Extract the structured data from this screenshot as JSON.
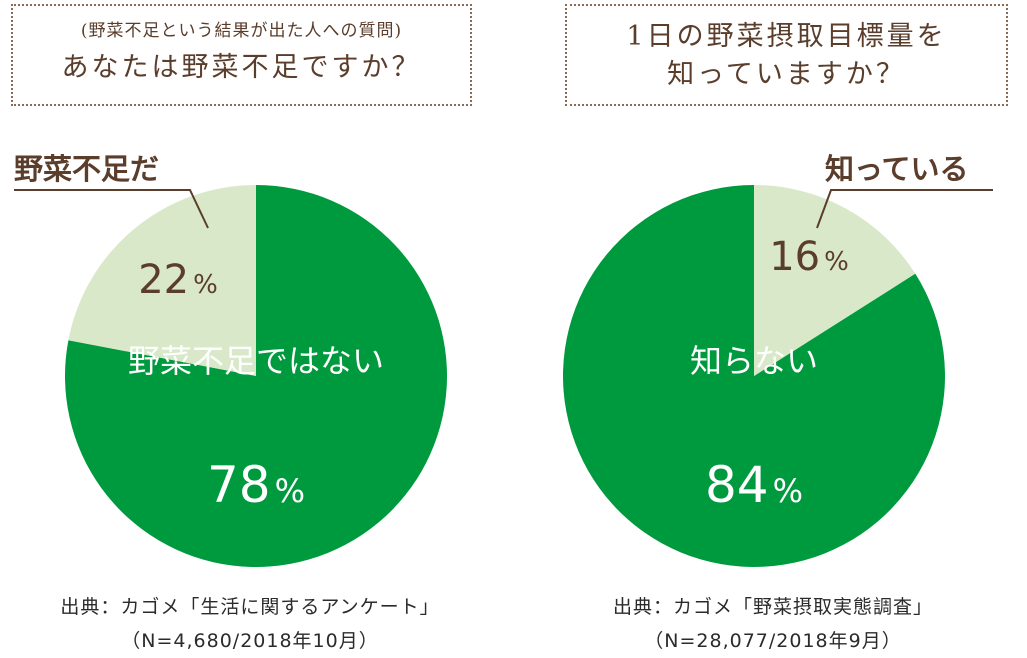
{
  "colors": {
    "dark_green": "#009a3e",
    "light_green": "#d8e8c8",
    "brown": "#5a3d2b",
    "white": "#ffffff"
  },
  "chart_data": [
    {
      "type": "pie",
      "title": "あなたは野菜不足ですか？",
      "subtitle": "(野菜不足という結果が出た人への質問)",
      "slices": [
        {
          "label": "野菜不足だ",
          "value": 22,
          "display": "22",
          "color": "#d8e8c8",
          "text_color": "#5a3d2b"
        },
        {
          "label": "野菜不足ではない",
          "value": 78,
          "display": "78",
          "color": "#009a3e",
          "text_color": "#ffffff"
        }
      ],
      "unit": "%",
      "source": "出典：カゴメ「生活に関するアンケート」",
      "source_note": "（N=4,680/2018年10月）"
    },
    {
      "type": "pie",
      "title": "1日の野菜摂取目標量を知っていますか？",
      "title_lines": [
        "1日の野菜摂取目標量を",
        "知っていますか？"
      ],
      "slices": [
        {
          "label": "知っている",
          "value": 16,
          "display": "16",
          "color": "#d8e8c8",
          "text_color": "#5a3d2b"
        },
        {
          "label": "知らない",
          "value": 84,
          "display": "84",
          "color": "#009a3e",
          "text_color": "#ffffff"
        }
      ],
      "unit": "%",
      "source": "出典：カゴメ「野菜摂取実態調査」",
      "source_note": "（N=28,077/2018年9月）"
    }
  ]
}
